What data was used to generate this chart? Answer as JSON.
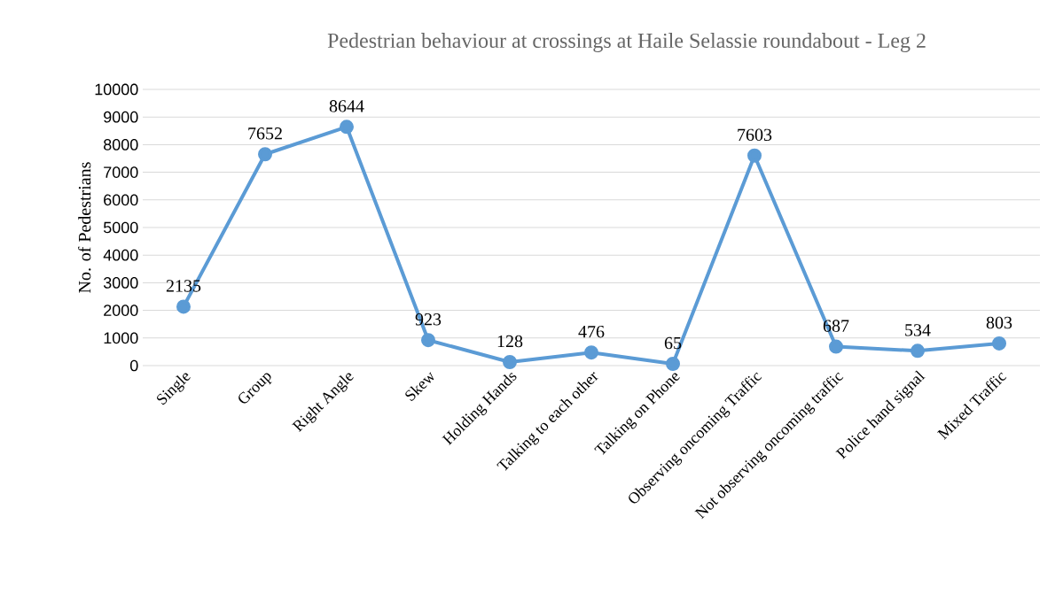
{
  "chart_data": {
    "type": "line",
    "title": "Pedestrian behaviour at crossings at Haile Selassie roundabout - Leg 2",
    "ylabel": "No. of Pedestrians",
    "categories": [
      "Single",
      "Group",
      "Right Angle",
      "Skew",
      "Holding Hands",
      "Talking to each other",
      "Talking on Phone",
      "Observing oncoming Traffic",
      "Not observing oncoming traffic",
      "Police hand signal",
      "Mixed Traffic"
    ],
    "values": [
      2135,
      7652,
      8644,
      923,
      128,
      476,
      65,
      7603,
      687,
      534,
      803
    ],
    "color": "#5b9bd5",
    "marker": "circle",
    "line_style": "solid",
    "data_labels": true,
    "grid": "y",
    "ylim": [
      0,
      10000
    ],
    "yticks": [
      0,
      1000,
      2000,
      3000,
      4000,
      5000,
      6000,
      7000,
      8000,
      9000,
      10000
    ]
  }
}
